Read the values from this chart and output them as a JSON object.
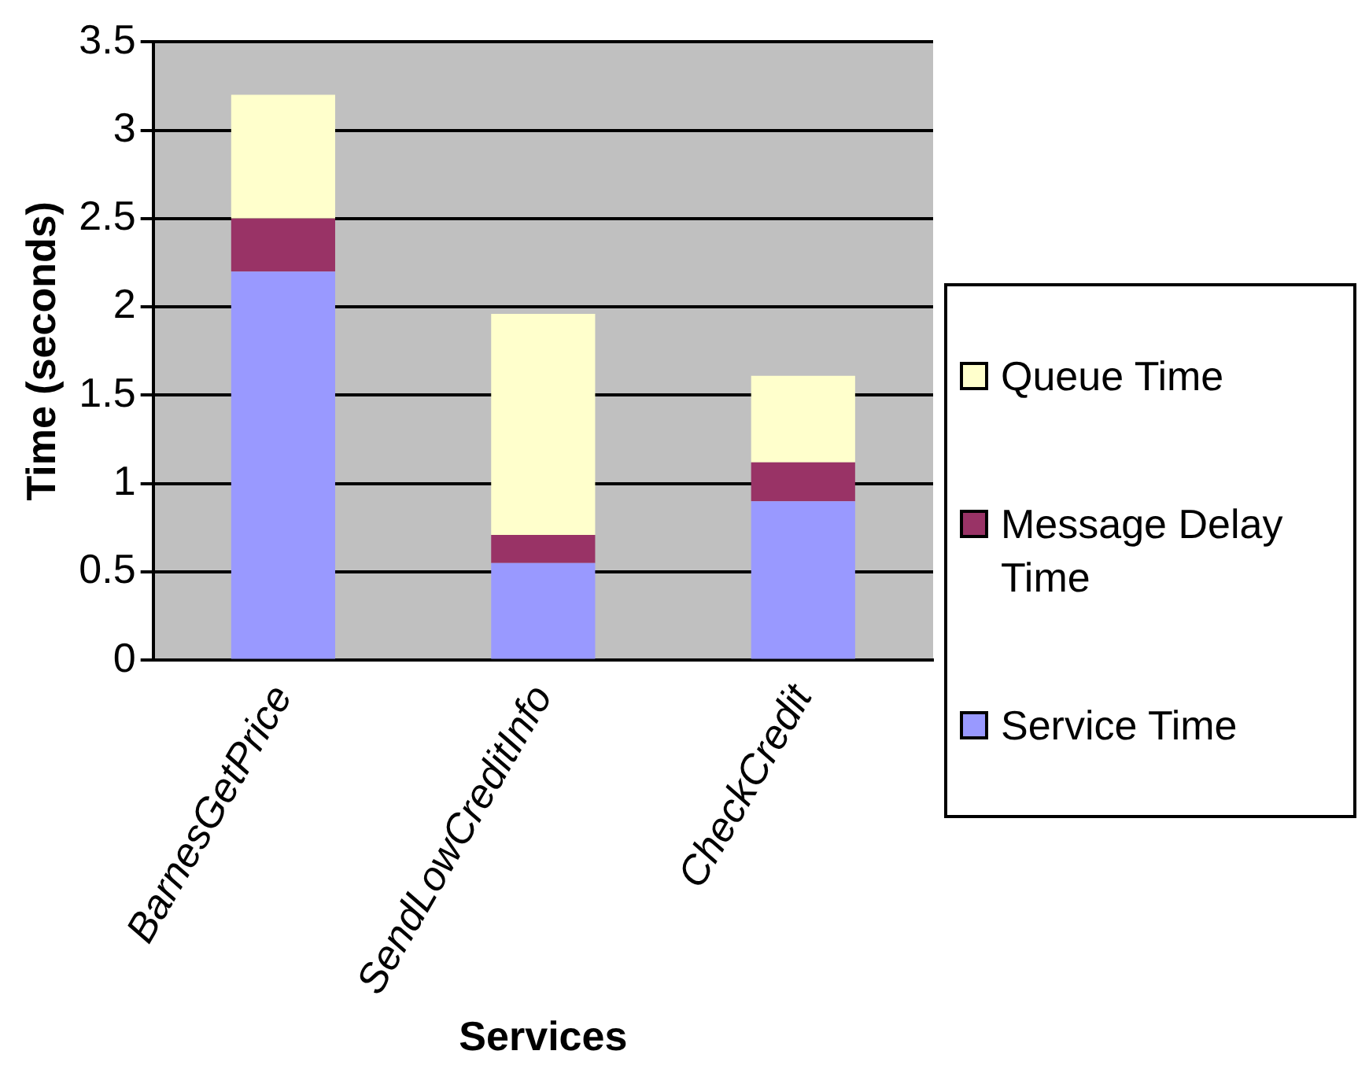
{
  "chart_data": {
    "type": "bar",
    "stacked": true,
    "xlabel": "Services",
    "ylabel": "Time (seconds)",
    "categories": [
      "BarnesGetPrice",
      "SendLowCreditInfo",
      "CheckCredit"
    ],
    "series": [
      {
        "name": "Service Time",
        "color": "#9999ff",
        "values": [
          2.2,
          0.55,
          0.9
        ]
      },
      {
        "name": "Message Delay Time",
        "color": "#993366",
        "values": [
          0.3,
          0.16,
          0.22
        ]
      },
      {
        "name": "Queue Time",
        "color": "#ffffcc",
        "values": [
          0.7,
          1.25,
          0.49
        ]
      }
    ],
    "ylim": [
      0,
      3.5
    ],
    "yticks": [
      0,
      0.5,
      1,
      1.5,
      2,
      2.5,
      3,
      3.5
    ],
    "grid": "y",
    "legend": "right"
  }
}
